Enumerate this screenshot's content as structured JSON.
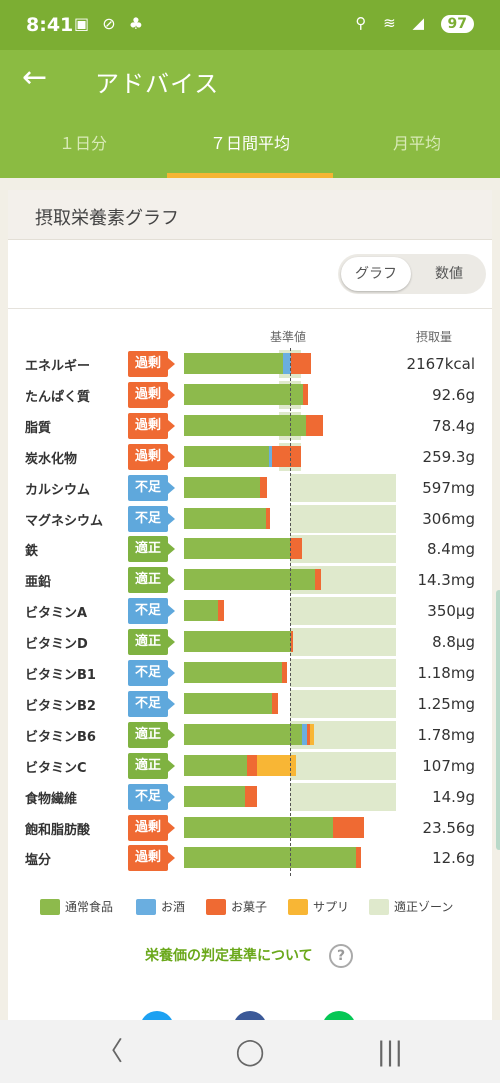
{
  "status": {
    "time": "8:41",
    "left_icons": "▣ ⊘ ♣",
    "right_icons": "⚲ ≋ ◢",
    "battery": "97"
  },
  "appbar": {
    "back_icon": "arrow-left-icon",
    "title": "アドバイス"
  },
  "tabs": [
    {
      "label": "１日分",
      "active": false
    },
    {
      "label": "７日間平均",
      "active": true
    },
    {
      "label": "月平均",
      "active": false
    }
  ],
  "card": {
    "title": "摂取栄養素グラフ",
    "toggle": {
      "graph": "グラフ",
      "numeric": "数値"
    },
    "col_ref": "基準値",
    "col_intake": "摂取量"
  },
  "colors": {
    "food": "#8dba4c",
    "alcohol": "#6aaee0",
    "sweets": "#ef6a33",
    "supplement": "#f8b635",
    "zone": "#dfe9cc",
    "over": "#ef6a33",
    "short": "#5fa8dc",
    "ok": "#7fb241"
  },
  "nutrients": [
    {
      "name": "エネルギー",
      "status": "過剰",
      "level": "over",
      "value": "2167kcal",
      "zone": [
        0.9,
        1.1
      ],
      "segments": [
        [
          "food",
          0.93
        ],
        [
          "alcohol",
          0.08
        ],
        [
          "sweets",
          0.19
        ]
      ]
    },
    {
      "name": "たんぱく質",
      "status": "過剰",
      "level": "over",
      "value": "92.6g",
      "zone": [
        0.9,
        1.1
      ],
      "segments": [
        [
          "food",
          1.12
        ],
        [
          "sweets",
          0.05
        ]
      ]
    },
    {
      "name": "脂質",
      "status": "過剰",
      "level": "over",
      "value": "78.4g",
      "zone": [
        0.9,
        1.1
      ],
      "segments": [
        [
          "food",
          1.15
        ],
        [
          "sweets",
          0.16
        ]
      ]
    },
    {
      "name": "炭水化物",
      "status": "過剰",
      "level": "over",
      "value": "259.3g",
      "zone": [
        0.9,
        1.1
      ],
      "segments": [
        [
          "food",
          0.8
        ],
        [
          "alcohol",
          0.03
        ],
        [
          "sweets",
          0.27
        ]
      ]
    },
    {
      "name": "カルシウム",
      "status": "不足",
      "level": "short",
      "value": "597mg",
      "zone": [
        1.0,
        2.0
      ],
      "segments": [
        [
          "food",
          0.72
        ],
        [
          "sweets",
          0.06
        ]
      ]
    },
    {
      "name": "マグネシウム",
      "status": "不足",
      "level": "short",
      "value": "306mg",
      "zone": [
        1.0,
        2.0
      ],
      "segments": [
        [
          "food",
          0.77
        ],
        [
          "sweets",
          0.04
        ]
      ]
    },
    {
      "name": "鉄",
      "status": "適正",
      "level": "ok",
      "value": "8.4mg",
      "zone": [
        1.0,
        2.0
      ],
      "segments": [
        [
          "food",
          1.0
        ],
        [
          "sweets",
          0.11
        ]
      ]
    },
    {
      "name": "亜鉛",
      "status": "適正",
      "level": "ok",
      "value": "14.3mg",
      "zone": [
        1.0,
        2.0
      ],
      "segments": [
        [
          "food",
          1.24
        ],
        [
          "sweets",
          0.05
        ]
      ]
    },
    {
      "name": "ビタミンA",
      "status": "不足",
      "level": "short",
      "value": "350μg",
      "zone": [
        1.0,
        2.0
      ],
      "segments": [
        [
          "food",
          0.32
        ],
        [
          "sweets",
          0.06
        ]
      ]
    },
    {
      "name": "ビタミンD",
      "status": "適正",
      "level": "ok",
      "value": "8.8μg",
      "zone": [
        1.0,
        2.0
      ],
      "segments": [
        [
          "food",
          1.01
        ],
        [
          "sweets",
          0.02
        ]
      ]
    },
    {
      "name": "ビタミンB1",
      "status": "不足",
      "level": "short",
      "value": "1.18mg",
      "zone": [
        1.0,
        2.0
      ],
      "segments": [
        [
          "food",
          0.92
        ],
        [
          "sweets",
          0.05
        ]
      ]
    },
    {
      "name": "ビタミンB2",
      "status": "不足",
      "level": "short",
      "value": "1.25mg",
      "zone": [
        1.0,
        2.0
      ],
      "segments": [
        [
          "food",
          0.83
        ],
        [
          "sweets",
          0.06
        ]
      ]
    },
    {
      "name": "ビタミンB6",
      "status": "適正",
      "level": "ok",
      "value": "1.78mg",
      "zone": [
        1.0,
        2.0
      ],
      "segments": [
        [
          "food",
          1.11
        ],
        [
          "alcohol",
          0.05
        ],
        [
          "sweets",
          0.03
        ],
        [
          "supplement",
          0.04
        ]
      ]
    },
    {
      "name": "ビタミンC",
      "status": "適正",
      "level": "ok",
      "value": "107mg",
      "zone": [
        1.0,
        2.0
      ],
      "segments": [
        [
          "food",
          0.59
        ],
        [
          "sweets",
          0.1
        ],
        [
          "supplement",
          0.37
        ]
      ]
    },
    {
      "name": "食物繊維",
      "status": "不足",
      "level": "short",
      "value": "14.9g",
      "zone": [
        1.0,
        2.0
      ],
      "segments": [
        [
          "food",
          0.58
        ],
        [
          "sweets",
          0.11
        ]
      ]
    },
    {
      "name": "飽和脂肪酸",
      "status": "過剰",
      "level": "over",
      "value": "23.56g",
      "zone": [
        0.0,
        0.0
      ],
      "segments": [
        [
          "food",
          1.41
        ],
        [
          "sweets",
          0.29
        ]
      ]
    },
    {
      "name": "塩分",
      "status": "過剰",
      "level": "over",
      "value": "12.6g",
      "zone": [
        0.0,
        0.0
      ],
      "segments": [
        [
          "food",
          1.62
        ],
        [
          "sweets",
          0.05
        ]
      ]
    }
  ],
  "legend": [
    {
      "label": "通常食品",
      "color": "#8dba4c"
    },
    {
      "label": "お酒",
      "color": "#6aaee0"
    },
    {
      "label": "お菓子",
      "color": "#ef6a33"
    },
    {
      "label": "サプリ",
      "color": "#f8b635"
    },
    {
      "label": "適正ゾーン",
      "color": "#dfe9cc"
    }
  ],
  "criteria_link": "栄養価の判定基準について",
  "help": "?",
  "share_colors": [
    "#1da1f2",
    "#3b5998",
    "#06c755"
  ],
  "nav": {
    "back": "〈",
    "home": "◯",
    "recents": "|||"
  }
}
